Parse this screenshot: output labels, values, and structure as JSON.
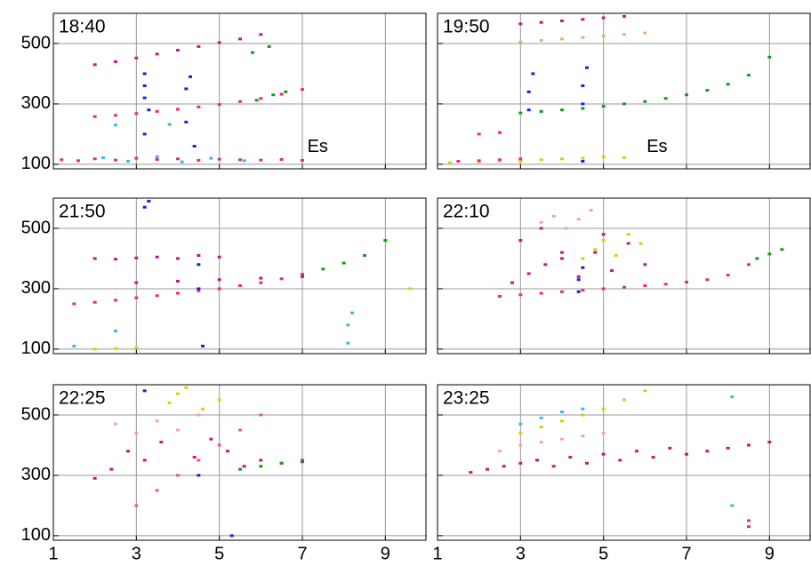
{
  "chart_data": [
    {
      "type": "scatter",
      "title": "18:40",
      "annotation": "Es",
      "xlim": [
        1,
        10
      ],
      "ylim": [
        85,
        600
      ],
      "xticks": [
        1,
        3,
        5,
        7,
        9
      ],
      "yticks": [
        100,
        300,
        500
      ],
      "grid": true,
      "series": [
        {
          "color": "#c0198c",
          "x": [
            2,
            2.5,
            3,
            3.5,
            4,
            4.5,
            5,
            5.5,
            6
          ],
          "values": [
            430,
            440,
            452,
            465,
            478,
            490,
            503,
            515,
            530
          ]
        },
        {
          "color": "#e8316a",
          "x": [
            2,
            2.5,
            3,
            3.5,
            4,
            4.5,
            5,
            5.5,
            6,
            6.5,
            7
          ],
          "values": [
            258,
            262,
            268,
            275,
            282,
            290,
            298,
            308,
            318,
            332,
            348
          ]
        },
        {
          "color": "#1a9a1a",
          "x": [
            5.8,
            6.2,
            6.6,
            5.9,
            6.3
          ],
          "values": [
            470,
            490,
            340,
            312,
            330
          ]
        },
        {
          "color": "#1f1fd6",
          "x": [
            3.2,
            3.2,
            3.2,
            3.3,
            4.2,
            4.3,
            4.4,
            3.2,
            4.2
          ],
          "values": [
            320,
            360,
            400,
            280,
            350,
            390,
            160,
            200,
            240
          ]
        },
        {
          "color": "#e8316a",
          "x": [
            1.2,
            1.6,
            2,
            2.5,
            3,
            3.5,
            4,
            4.5,
            5,
            5.5,
            6,
            6.5,
            7
          ],
          "values": [
            115,
            112,
            118,
            114,
            120,
            116,
            118,
            113,
            117,
            115,
            114,
            116,
            113
          ]
        },
        {
          "color": "#3db8e8",
          "x": [
            2.2,
            2.8,
            3.5,
            4.1,
            4.8,
            5.6,
            2.5,
            3.8
          ],
          "values": [
            122,
            110,
            125,
            108,
            120,
            112,
            230,
            232
          ]
        }
      ]
    },
    {
      "type": "scatter",
      "title": "19:50",
      "annotation": "Es",
      "xlim": [
        1,
        10
      ],
      "ylim": [
        85,
        600
      ],
      "xticks": [
        1,
        3,
        5,
        7,
        9
      ],
      "yticks": [
        100,
        300,
        500
      ],
      "grid": true,
      "series": [
        {
          "color": "#c0198c",
          "x": [
            3,
            3.5,
            4,
            4.5,
            5,
            5.5
          ],
          "values": [
            565,
            570,
            575,
            580,
            585,
            590
          ]
        },
        {
          "color": "#e8b070",
          "x": [
            3,
            3.5,
            4,
            4.5,
            5,
            5.5,
            6
          ],
          "values": [
            505,
            510,
            515,
            520,
            525,
            530,
            535
          ]
        },
        {
          "color": "#1a9a1a",
          "x": [
            3,
            3.5,
            4,
            4.5,
            5,
            5.5,
            6,
            6.5,
            7,
            7.5,
            8,
            8.5,
            9
          ],
          "values": [
            270,
            275,
            280,
            285,
            292,
            300,
            308,
            318,
            330,
            345,
            365,
            395,
            455
          ]
        },
        {
          "color": "#1f1fd6",
          "x": [
            3.2,
            3.2,
            3.3,
            4.5,
            4.5,
            4.6,
            4.5
          ],
          "values": [
            280,
            340,
            400,
            300,
            360,
            420,
            110
          ]
        },
        {
          "color": "#d4d40a",
          "x": [
            1.3,
            2,
            2.5,
            3,
            3.5,
            4,
            4.5,
            5,
            5.5
          ],
          "values": [
            105,
            108,
            112,
            110,
            115,
            118,
            120,
            125,
            122
          ]
        },
        {
          "color": "#e8316a",
          "x": [
            1.5,
            2,
            2.5,
            3,
            2,
            2.5
          ],
          "values": [
            110,
            112,
            115,
            118,
            200,
            205
          ]
        }
      ]
    },
    {
      "type": "scatter",
      "title": "21:50",
      "xlim": [
        1,
        10
      ],
      "ylim": [
        85,
        600
      ],
      "xticks": [
        1,
        3,
        5,
        7,
        9
      ],
      "yticks": [
        100,
        300,
        500
      ],
      "grid": true,
      "series": [
        {
          "color": "#e8316a",
          "x": [
            1.5,
            2,
            2.5,
            3,
            3.5,
            4,
            4.5,
            5,
            5.5,
            6,
            6.5,
            7
          ],
          "values": [
            250,
            255,
            262,
            270,
            277,
            285,
            293,
            300,
            310,
            320,
            333,
            348
          ]
        },
        {
          "color": "#1a9a1a",
          "x": [
            7.5,
            8,
            8.5,
            9
          ],
          "values": [
            365,
            385,
            410,
            460
          ]
        },
        {
          "color": "#c0198c",
          "x": [
            2,
            2.5,
            3,
            3.5,
            4,
            4.5,
            5,
            3,
            4,
            5,
            6,
            7
          ],
          "values": [
            400,
            398,
            402,
            405,
            400,
            410,
            405,
            320,
            325,
            330,
            335,
            340
          ]
        },
        {
          "color": "#1f1fd6",
          "x": [
            3.2,
            3.3,
            4.5,
            4.5,
            4.6
          ],
          "values": [
            570,
            590,
            300,
            380,
            110
          ]
        },
        {
          "color": "#3db8e8",
          "x": [
            8.1,
            8.1,
            8.2,
            1.5,
            2.5
          ],
          "values": [
            120,
            180,
            220,
            110,
            160
          ]
        },
        {
          "color": "#d4d40a",
          "x": [
            2,
            2.5,
            3,
            9.6
          ],
          "values": [
            100,
            102,
            105,
            300
          ]
        }
      ]
    },
    {
      "type": "scatter",
      "title": "22:10",
      "xlim": [
        1,
        10
      ],
      "ylim": [
        85,
        600
      ],
      "xticks": [
        1,
        3,
        5,
        7,
        9
      ],
      "yticks": [
        100,
        300,
        500
      ],
      "grid": true,
      "series": [
        {
          "color": "#c0198c",
          "x": [
            2.8,
            3.2,
            3.6,
            4,
            4.4,
            4.8,
            5.2,
            5.6,
            6,
            3,
            3.5,
            4,
            5
          ],
          "values": [
            320,
            350,
            380,
            400,
            340,
            420,
            360,
            450,
            380,
            460,
            500,
            420,
            480
          ]
        },
        {
          "color": "#d4d40a",
          "x": [
            4.5,
            4.8,
            5,
            5.3,
            5.6,
            5.9
          ],
          "values": [
            400,
            430,
            460,
            410,
            480,
            450
          ]
        },
        {
          "color": "#f2a0b0",
          "x": [
            3.5,
            3.8,
            4.1,
            4.4,
            4.7
          ],
          "values": [
            520,
            540,
            500,
            530,
            560
          ]
        },
        {
          "color": "#e8316a",
          "x": [
            2.5,
            3,
            3.5,
            4,
            4.5,
            5,
            5.5,
            6,
            6.5,
            7,
            7.5,
            8,
            8.5
          ],
          "values": [
            275,
            280,
            285,
            290,
            295,
            300,
            305,
            310,
            315,
            322,
            330,
            345,
            380
          ]
        },
        {
          "color": "#1a9a1a",
          "x": [
            8.7,
            9,
            9.3
          ],
          "values": [
            400,
            415,
            430
          ]
        },
        {
          "color": "#1f1fd6",
          "x": [
            4.4,
            4.4,
            4.5
          ],
          "values": [
            290,
            330,
            370
          ]
        }
      ]
    },
    {
      "type": "scatter",
      "title": "22:25",
      "xlim": [
        1,
        10
      ],
      "ylim": [
        85,
        600
      ],
      "xticks": [
        1,
        3,
        5,
        7,
        9
      ],
      "yticks": [
        100,
        300,
        500
      ],
      "grid": true,
      "series": [
        {
          "color": "#c0198c",
          "x": [
            2,
            2.4,
            2.8,
            3.2,
            3.6,
            4,
            4.4,
            4.8,
            5.2,
            5.6,
            6,
            6.5,
            7
          ],
          "values": [
            290,
            320,
            380,
            350,
            410,
            300,
            360,
            420,
            380,
            330,
            350,
            340,
            345
          ]
        },
        {
          "color": "#e85a9a",
          "x": [
            3,
            3.5,
            4,
            4.5,
            5,
            5.5,
            6
          ],
          "values": [
            200,
            250,
            300,
            350,
            400,
            450,
            500
          ]
        },
        {
          "color": "#f2a0b0",
          "x": [
            2.5,
            3,
            3.5,
            4,
            4.5
          ],
          "values": [
            470,
            440,
            480,
            450,
            500
          ]
        },
        {
          "color": "#d4d40a",
          "x": [
            3.8,
            4,
            4.2,
            4.6,
            5
          ],
          "values": [
            540,
            570,
            590,
            520,
            550
          ]
        },
        {
          "color": "#1a9a1a",
          "x": [
            5.5,
            6,
            6.5,
            7
          ],
          "values": [
            320,
            330,
            340,
            350
          ]
        },
        {
          "color": "#1f1fd6",
          "x": [
            3.2,
            4.5,
            5.3
          ],
          "values": [
            580,
            300,
            100
          ]
        }
      ]
    },
    {
      "type": "scatter",
      "title": "23:25",
      "xlim": [
        1,
        10
      ],
      "ylim": [
        85,
        600
      ],
      "xticks": [
        1,
        3,
        5,
        7,
        9
      ],
      "yticks": [
        100,
        300,
        500
      ],
      "grid": true,
      "series": [
        {
          "color": "#c0198c",
          "x": [
            1.8,
            2.2,
            2.6,
            3,
            3.4,
            3.8,
            4.2,
            4.6,
            5,
            5.4,
            5.8,
            6.2,
            6.6,
            7,
            7.5,
            8,
            8.5,
            9
          ],
          "values": [
            310,
            320,
            330,
            340,
            350,
            330,
            360,
            340,
            370,
            350,
            380,
            360,
            390,
            370,
            380,
            390,
            400,
            410
          ]
        },
        {
          "color": "#d4d40a",
          "x": [
            3,
            3.5,
            4,
            4.5,
            5,
            5.5,
            6
          ],
          "values": [
            440,
            460,
            480,
            500,
            520,
            550,
            580
          ]
        },
        {
          "color": "#3db8e8",
          "x": [
            3,
            3.5,
            4,
            4.5,
            8.1,
            8.1
          ],
          "values": [
            470,
            490,
            510,
            520,
            200,
            560
          ]
        },
        {
          "color": "#f2a0b0",
          "x": [
            2.5,
            3,
            3.5,
            4,
            4.5,
            5
          ],
          "values": [
            380,
            400,
            410,
            420,
            430,
            440
          ]
        },
        {
          "color": "#e8316a",
          "x": [
            8.5,
            8.5
          ],
          "values": [
            130,
            150
          ]
        }
      ]
    }
  ]
}
